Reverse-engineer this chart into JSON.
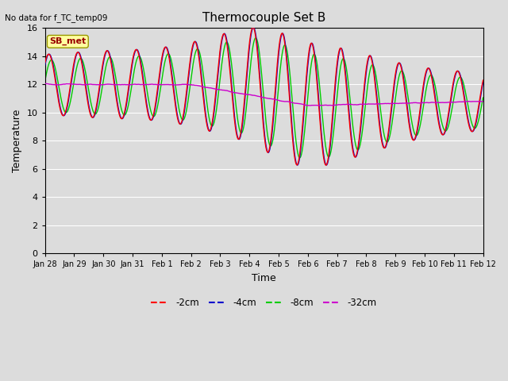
{
  "title": "Thermocouple Set B",
  "no_data_text": "No data for f_TC_temp09",
  "xlabel": "Time",
  "ylabel": "Temperature",
  "ylim": [
    0,
    16
  ],
  "yticks": [
    0,
    2,
    4,
    6,
    8,
    10,
    12,
    14,
    16
  ],
  "bg_color": "#dcdcdc",
  "legend_labels": [
    "-2cm",
    "-4cm",
    "-8cm",
    "-32cm"
  ],
  "legend_colors": [
    "#ff0000",
    "#0000cc",
    "#00cc00",
    "#cc00cc"
  ],
  "sb_met_box_color": "#ffffa0",
  "sb_met_text_color": "#990000",
  "n_points": 2000
}
